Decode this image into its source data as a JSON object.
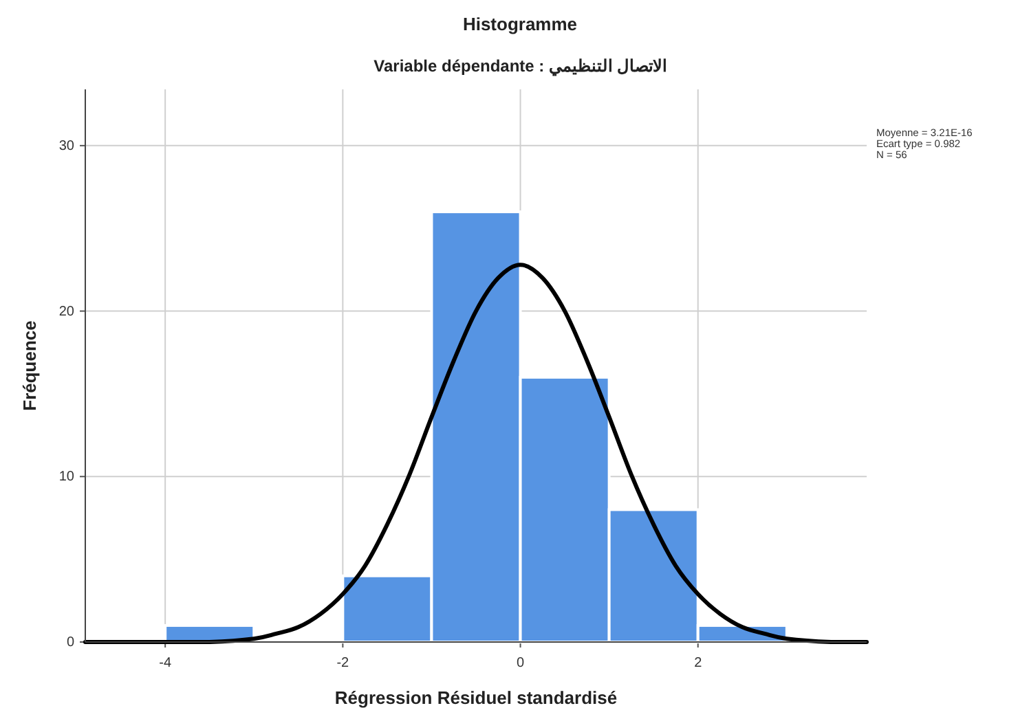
{
  "chart_data": {
    "type": "histogram",
    "title": "Histogramme",
    "subtitle": "Variable dépendante : الاتصال التنظيمي",
    "xlabel": "Régression Résiduel standardisé",
    "ylabel": "Fréquence",
    "bins": [
      -4,
      -3,
      -2,
      -1,
      0,
      1,
      2,
      3
    ],
    "values": [
      1,
      0,
      4,
      26,
      16,
      8,
      1
    ],
    "color": "#5694e3",
    "series": [
      {
        "type": "line",
        "color": "#000000",
        "x": [
          -4.9,
          -4,
          -3.5,
          -3,
          -2.75,
          -2.5,
          -2.25,
          -2,
          -1.75,
          -1.5,
          -1.25,
          -1,
          -0.75,
          -0.5,
          -0.25,
          0,
          0.25,
          0.5,
          0.75,
          1,
          1.25,
          1.5,
          1.75,
          2,
          2.25,
          2.5,
          2.75,
          3,
          3.5,
          3.9
        ],
        "values": [
          0,
          0,
          0,
          0.2,
          0.5,
          0.9,
          1.7,
          2.9,
          4.6,
          7.1,
          10.1,
          13.6,
          17,
          20,
          22,
          22.8,
          22,
          20,
          17,
          13.6,
          10.1,
          7.1,
          4.6,
          2.9,
          1.7,
          0.9,
          0.5,
          0.2,
          0,
          0
        ]
      }
    ],
    "xlim": [
      -4.9,
      3.9
    ],
    "xticks": [
      -4,
      -2,
      0,
      2
    ],
    "ylim": [
      0,
      33.4
    ],
    "yticks": [
      0,
      10,
      20,
      30
    ],
    "grid": true,
    "annotations": [
      "Moyenne = 3.21E-16",
      "Ecart type = 0.982",
      "N = 56"
    ]
  }
}
